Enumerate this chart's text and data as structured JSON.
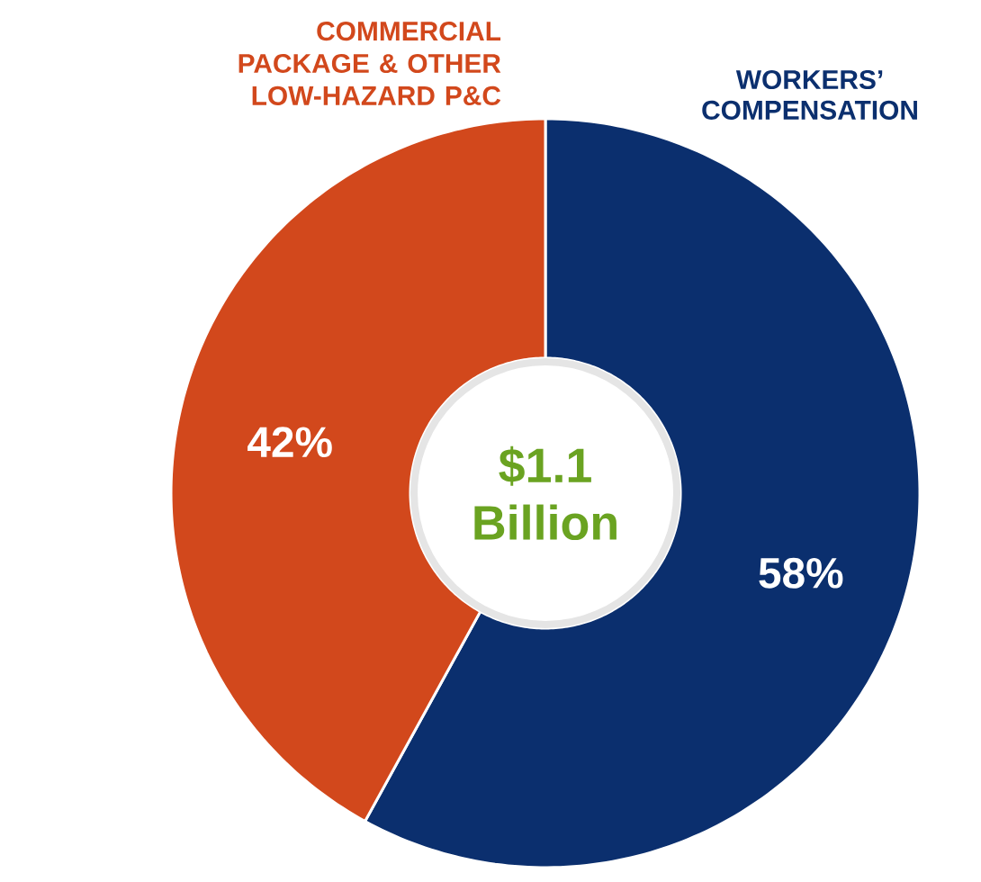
{
  "chart_data": {
    "type": "donut",
    "categories": [
      "WORKERS’ COMPENSATION",
      "COMMERCIAL PACKAGE & OTHER LOW-HAZARD P&C"
    ],
    "values": [
      58,
      42
    ],
    "colors": [
      "#0b2f6e",
      "#d2481c"
    ],
    "value_labels": [
      "58%",
      "42%"
    ],
    "annotations": [
      "$1.1 Billion"
    ]
  }
}
